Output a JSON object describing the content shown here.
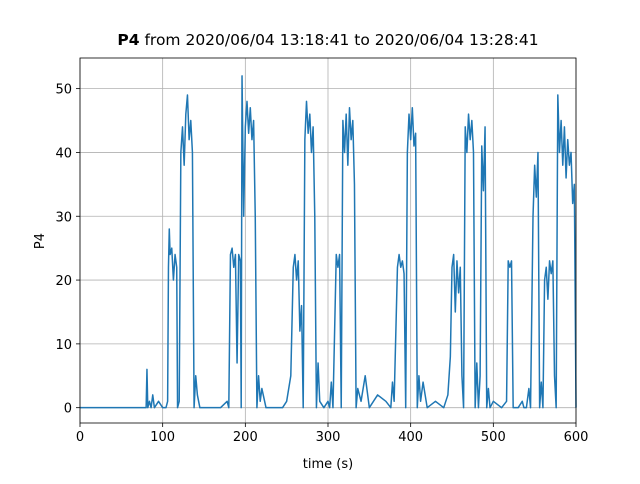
{
  "chart_data": {
    "type": "line",
    "title_bold": "P4",
    "title": "from 2020/06/04 13:18:41 to 2020/06/04 13:28:41",
    "x_label": "time (s)",
    "y_label": "P4",
    "xlim": [
      0,
      600
    ],
    "ylim": [
      -2.4,
      54.8
    ],
    "xticks": [
      0,
      100,
      200,
      300,
      400,
      500,
      600
    ],
    "yticks": [
      0,
      10,
      20,
      30,
      40,
      50
    ],
    "grid": true,
    "series": [
      {
        "color": "#1f77b4",
        "x": [
          0,
          80,
          81,
          82,
          84,
          86,
          88,
          90,
          95,
          100,
          104,
          106,
          107,
          108,
          109,
          111,
          113,
          115,
          117,
          118,
          120,
          122,
          124,
          126,
          128,
          130,
          132,
          134,
          136,
          138,
          140,
          142,
          145,
          150,
          160,
          170,
          178,
          180,
          182,
          184,
          186,
          188,
          190,
          192,
          194,
          195,
          196,
          198,
          200,
          202,
          204,
          206,
          208,
          210,
          212,
          214,
          216,
          218,
          220,
          225,
          235,
          245,
          250,
          255,
          258,
          260,
          262,
          264,
          266,
          268,
          270,
          272,
          274,
          276,
          278,
          280,
          282,
          284,
          286,
          288,
          290,
          295,
          300,
          302,
          304,
          306,
          310,
          312,
          314,
          316,
          318,
          320,
          322,
          324,
          326,
          328,
          330,
          332,
          334,
          336,
          340,
          345,
          350,
          360,
          370,
          376,
          378,
          380,
          384,
          386,
          388,
          390,
          392,
          394,
          396,
          398,
          400,
          402,
          404,
          406,
          408,
          410,
          412,
          415,
          420,
          430,
          440,
          445,
          448,
          450,
          452,
          454,
          456,
          458,
          460,
          462,
          464,
          466,
          468,
          470,
          472,
          474,
          476,
          478,
          480,
          482,
          484,
          486,
          488,
          490,
          492,
          494,
          496,
          500,
          510,
          516,
          518,
          520,
          522,
          524,
          530,
          535,
          537,
          540,
          543,
          545,
          548,
          550,
          552,
          554,
          556,
          558,
          560,
          562,
          564,
          566,
          568,
          570,
          572,
          574,
          576,
          578,
          580,
          582,
          584,
          586,
          588,
          590,
          592,
          594,
          596,
          598,
          600
        ],
        "values": [
          0,
          0,
          6,
          0,
          1,
          0,
          2,
          0,
          1,
          0,
          0,
          1,
          22,
          28,
          24,
          25,
          20,
          24,
          22,
          0,
          1,
          40,
          44,
          38,
          46,
          49,
          42,
          45,
          40,
          0,
          5,
          2,
          0,
          0,
          0,
          0,
          1,
          0,
          24,
          25,
          22,
          24,
          7,
          24,
          23,
          0,
          52,
          30,
          44,
          48,
          43,
          47,
          42,
          45,
          30,
          0,
          5,
          1,
          3,
          0,
          0,
          0,
          1,
          5,
          22,
          24,
          20,
          23,
          12,
          16,
          0,
          42,
          48,
          43,
          46,
          40,
          44,
          30,
          0,
          7,
          1,
          0,
          1,
          0,
          4,
          0,
          24,
          22,
          24,
          0,
          45,
          40,
          46,
          38,
          47,
          42,
          45,
          35,
          0,
          3,
          1,
          5,
          0,
          2,
          1,
          0,
          4,
          1,
          22,
          24,
          22,
          23,
          21,
          0,
          40,
          46,
          42,
          47,
          41,
          43,
          0,
          5,
          1,
          4,
          0,
          1,
          0,
          2,
          8,
          22,
          24,
          15,
          23,
          18,
          22,
          5,
          0,
          44,
          40,
          46,
          42,
          45,
          40,
          0,
          7,
          0,
          5,
          41,
          34,
          44,
          0,
          3,
          0,
          1,
          0,
          1,
          23,
          22,
          23,
          0,
          0,
          1,
          0,
          0,
          3,
          0,
          30,
          38,
          33,
          40,
          0,
          4,
          0,
          20,
          22,
          17,
          23,
          21,
          23,
          5,
          0,
          49,
          40,
          45,
          38,
          44,
          36,
          42,
          38,
          40,
          32,
          35,
          0
        ]
      }
    ]
  }
}
